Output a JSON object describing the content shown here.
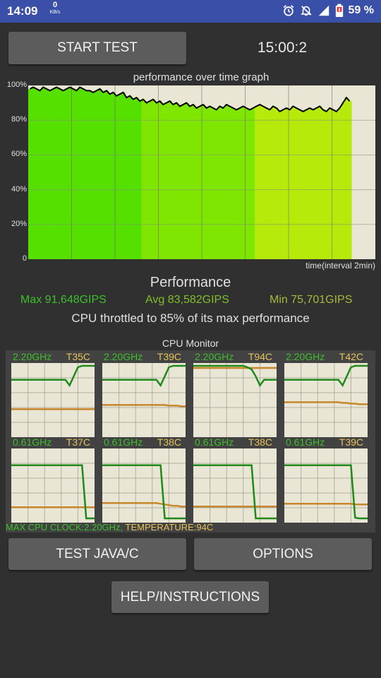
{
  "status_bar": {
    "time": "14:09",
    "net_speed_value": "0",
    "net_speed_unit": "KB/s",
    "icons": [
      "alarm-icon",
      "mute-icon",
      "signal-icon",
      "battery-icon"
    ],
    "battery_percent": "59 %"
  },
  "controls": {
    "start_label": "START TEST",
    "timer": "15:00:2",
    "test_java_label": "TEST JAVA/C",
    "options_label": "OPTIONS",
    "help_label": "HELP/INSTRUCTIONS"
  },
  "graph": {
    "title": "performance over time graph",
    "y_ticks": [
      "100%",
      "80%",
      "60%",
      "40%",
      "20%",
      "0"
    ],
    "x_label": "time(interval 2min)"
  },
  "chart_data": {
    "type": "area",
    "title": "performance over time graph",
    "xlabel": "time(interval 2min)",
    "ylabel": "",
    "ylim": [
      0,
      100
    ],
    "y_ticks": [
      "0",
      "20%",
      "40%",
      "60%",
      "80%",
      "100%"
    ],
    "x_interval": "2min",
    "grid": true,
    "series": [
      {
        "values": [
          98,
          99,
          98,
          97,
          99,
          98,
          97,
          98,
          99,
          98,
          97,
          98,
          99,
          98,
          97,
          99,
          98,
          97,
          97,
          96,
          97,
          98,
          96,
          97,
          95,
          96,
          94,
          95,
          96,
          93,
          94,
          92,
          93,
          91,
          92,
          90,
          91,
          92,
          90,
          91,
          89,
          90,
          91,
          89,
          90,
          88,
          89,
          90,
          88,
          89,
          87,
          88,
          89,
          87,
          88,
          87,
          86,
          88,
          87,
          89,
          88,
          87,
          86,
          87,
          88,
          87,
          86,
          87,
          88,
          89,
          88,
          87,
          86,
          88,
          87,
          85,
          86,
          87,
          86,
          88,
          87,
          86,
          85,
          86,
          87,
          86,
          87,
          88,
          86,
          85,
          87,
          86,
          85,
          87,
          90,
          93,
          91
        ]
      }
    ],
    "bar_colors": [
      "#55e000",
      "#7ee600",
      "#b5ea0b"
    ],
    "line_color": "#000000"
  },
  "performance": {
    "title": "Performance",
    "max": "Max 91,648GIPS",
    "avg": "Avg 83,582GIPS",
    "min": "Min 75,701GIPS",
    "throttle_text": "CPU throttled to 85% of its max performance",
    "max_color": "#3cbf2a",
    "avg_color": "#7fbf2a",
    "min_color": "#a8b83a"
  },
  "cpu_monitor": {
    "title": "CPU Monitor",
    "freq_color": "#1f8a1a",
    "temp_color": "#c8862a",
    "cores": [
      {
        "freq": "2.20GHz",
        "temp": "T35C",
        "freq_series": [
          0.8,
          0.8,
          0.8,
          0.8,
          0.8,
          0.8,
          0.8,
          0.8,
          0.8,
          0.8,
          0.8,
          0.8,
          0.8,
          0.8,
          0.72,
          0.85,
          0.98,
          1.0,
          1.0,
          1.0,
          1.0
        ],
        "temp_series": [
          0.38,
          0.38,
          0.38,
          0.38,
          0.38,
          0.38,
          0.38,
          0.38,
          0.38,
          0.38,
          0.38,
          0.38,
          0.38,
          0.38,
          0.38,
          0.38,
          0.38,
          0.38,
          0.38,
          0.38,
          0.38
        ]
      },
      {
        "freq": "2.20GHz",
        "temp": "T39C",
        "freq_series": [
          0.8,
          0.8,
          0.8,
          0.8,
          0.8,
          0.8,
          0.8,
          0.8,
          0.8,
          0.8,
          0.8,
          0.8,
          0.8,
          0.8,
          0.72,
          0.85,
          0.98,
          1.0,
          1.0,
          1.0,
          1.0
        ],
        "temp_series": [
          0.44,
          0.44,
          0.44,
          0.44,
          0.44,
          0.44,
          0.44,
          0.44,
          0.44,
          0.44,
          0.44,
          0.44,
          0.44,
          0.44,
          0.44,
          0.44,
          0.43,
          0.43,
          0.43,
          0.42,
          0.42
        ]
      },
      {
        "freq": "2.20GHz",
        "temp": "T94C",
        "freq_series": [
          1.0,
          1.0,
          1.0,
          1.0,
          1.0,
          1.0,
          1.0,
          1.0,
          1.0,
          1.0,
          1.0,
          1.0,
          1.0,
          0.98,
          0.95,
          0.85,
          0.72,
          0.8,
          0.8,
          0.8,
          0.8
        ],
        "temp_series": [
          0.97,
          0.97,
          0.97,
          0.97,
          0.97,
          0.97,
          0.97,
          0.97,
          0.97,
          0.97,
          0.97,
          0.97,
          0.97,
          0.97,
          0.97,
          0.97,
          0.97,
          0.97,
          0.97,
          0.97,
          0.97
        ]
      },
      {
        "freq": "2.20GHz",
        "temp": "T42C",
        "freq_series": [
          0.8,
          0.8,
          0.8,
          0.8,
          0.8,
          0.8,
          0.8,
          0.8,
          0.8,
          0.8,
          0.8,
          0.8,
          0.8,
          0.8,
          0.72,
          0.85,
          0.98,
          1.0,
          1.0,
          1.0,
          1.0
        ],
        "temp_series": [
          0.48,
          0.48,
          0.48,
          0.48,
          0.48,
          0.48,
          0.48,
          0.48,
          0.48,
          0.48,
          0.48,
          0.48,
          0.48,
          0.48,
          0.47,
          0.47,
          0.46,
          0.46,
          0.45,
          0.45,
          0.45
        ]
      },
      {
        "freq": "0.61GHz",
        "temp": "T37C",
        "freq_series": [
          0.8,
          0.8,
          0.8,
          0.8,
          0.8,
          0.8,
          0.8,
          0.8,
          0.8,
          0.8,
          0.8,
          0.8,
          0.8,
          0.8,
          0.8,
          0.8,
          0.8,
          0.8,
          0.04,
          0.04,
          0.04
        ],
        "temp_series": [
          0.2,
          0.2,
          0.2,
          0.2,
          0.2,
          0.2,
          0.2,
          0.2,
          0.2,
          0.2,
          0.2,
          0.2,
          0.2,
          0.2,
          0.2,
          0.2,
          0.2,
          0.2,
          0.2,
          0.2,
          0.2
        ]
      },
      {
        "freq": "0.61GHz",
        "temp": "T38C",
        "freq_series": [
          0.8,
          0.8,
          0.8,
          0.8,
          0.8,
          0.8,
          0.8,
          0.8,
          0.8,
          0.8,
          0.8,
          0.8,
          0.8,
          0.8,
          0.8,
          0.04,
          0.04,
          0.04,
          0.04,
          0.04,
          0.04
        ],
        "temp_series": [
          0.26,
          0.26,
          0.26,
          0.26,
          0.26,
          0.26,
          0.26,
          0.26,
          0.26,
          0.26,
          0.26,
          0.26,
          0.26,
          0.26,
          0.25,
          0.24,
          0.23,
          0.22,
          0.22,
          0.21,
          0.21
        ]
      },
      {
        "freq": "0.61GHz",
        "temp": "T38C",
        "freq_series": [
          0.8,
          0.8,
          0.8,
          0.8,
          0.8,
          0.8,
          0.8,
          0.8,
          0.8,
          0.8,
          0.8,
          0.8,
          0.8,
          0.8,
          0.8,
          0.04,
          0.04,
          0.04,
          0.04,
          0.04,
          0.04
        ],
        "temp_series": [
          0.21,
          0.21,
          0.21,
          0.21,
          0.21,
          0.21,
          0.21,
          0.21,
          0.21,
          0.21,
          0.21,
          0.21,
          0.21,
          0.21,
          0.21,
          0.21,
          0.21,
          0.21,
          0.21,
          0.21,
          0.21
        ]
      },
      {
        "freq": "0.61GHz",
        "temp": "T39C",
        "freq_series": [
          0.8,
          0.8,
          0.8,
          0.8,
          0.8,
          0.8,
          0.8,
          0.8,
          0.8,
          0.8,
          0.8,
          0.8,
          0.8,
          0.8,
          0.8,
          0.8,
          0.8,
          0.05,
          0.04,
          0.04,
          0.04
        ],
        "temp_series": [
          0.25,
          0.25,
          0.25,
          0.25,
          0.25,
          0.25,
          0.25,
          0.25,
          0.25,
          0.25,
          0.25,
          0.25,
          0.25,
          0.25,
          0.25,
          0.25,
          0.25,
          0.24,
          0.24,
          0.24,
          0.24
        ]
      }
    ],
    "max_clock_text": "MAX CPU CLOCK:2.20GHz,",
    "temperature_text": "TEMPERATURE:94C"
  }
}
